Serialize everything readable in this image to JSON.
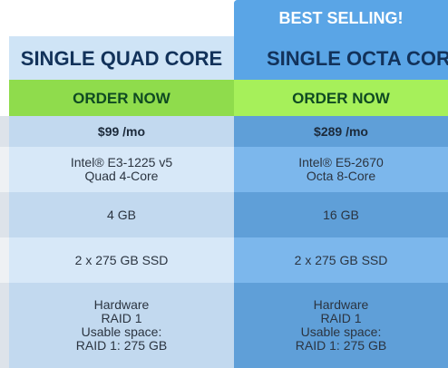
{
  "plans": [
    {
      "title": "SINGLE QUAD CORE",
      "badge": "",
      "order_label": "ORDER NOW",
      "price": "$99 /mo",
      "cpu_lines": [
        "Intel® E3-1225 v5",
        "Quad 4-Core"
      ],
      "ram": "4 GB",
      "storage": "2 x 275 GB SSD",
      "raid_lines": [
        "Hardware",
        "RAID 1",
        "Usable space:",
        "RAID 1: 275 GB"
      ]
    },
    {
      "title": "SINGLE OCTA CORE",
      "badge": "BEST SELLING!",
      "order_label": "ORDER NOW",
      "price": "$289 /mo",
      "cpu_lines": [
        "Intel® E5-2670",
        "Octa 8-Core"
      ],
      "ram": "16 GB",
      "storage": "2 x 275 GB SSD",
      "raid_lines": [
        "Hardware",
        "RAID 1",
        "Usable space:",
        "RAID 1: 275 GB"
      ]
    }
  ],
  "colors": {
    "order_green_plan1": "#8fdc4c",
    "order_green_plan2": "#a6f05a",
    "plan1_header_bg": "#cfe4f6",
    "plan2_header_bg": "#5aa5e6"
  }
}
